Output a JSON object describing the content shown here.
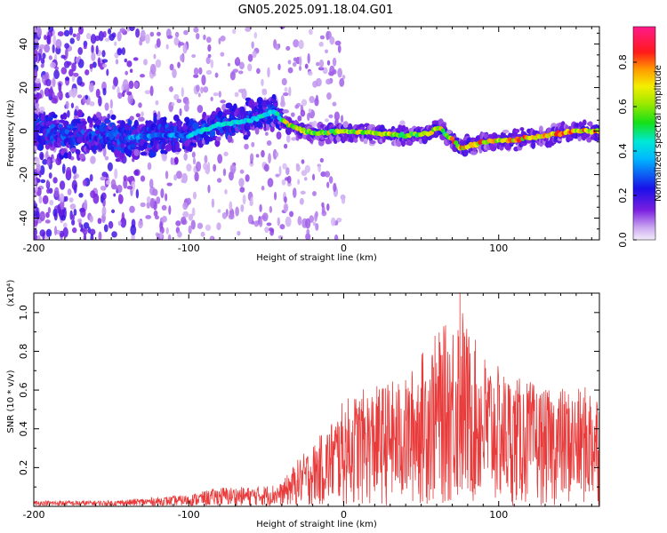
{
  "title": "GN05.2025.091.18.04.G01",
  "chart_data": [
    {
      "type": "heatmap",
      "xlabel": "Height of straight line (km)",
      "ylabel": "Frequency (Hz)",
      "xlim": [
        -200,
        165
      ],
      "ylim": [
        -50,
        48
      ],
      "xticks": [
        -200,
        -100,
        0,
        100
      ],
      "yticks": [
        -40,
        -20,
        0,
        20,
        40
      ],
      "colorbar": {
        "label": "Normalized spectral amplitude",
        "ticks": [
          0.0,
          0.2,
          0.4,
          0.6,
          0.8
        ],
        "range": [
          0,
          0.96
        ],
        "colormap": "rainbow (white-purple-blue-cyan-green-yellow-red-magenta)"
      },
      "ridge": {
        "description": "dominant frequency trace",
        "x": [
          -200,
          -180,
          -160,
          -140,
          -120,
          -100,
          -80,
          -60,
          -45,
          -40,
          -30,
          -20,
          0,
          20,
          40,
          55,
          62,
          66,
          70,
          75,
          90,
          110,
          130,
          150,
          165
        ],
        "y": [
          0,
          -2,
          -1,
          -3,
          -2,
          -2,
          3,
          5,
          9,
          5,
          1,
          -1,
          0,
          -1,
          -2,
          -1,
          2,
          -2,
          -4,
          -8,
          -5,
          -4,
          -2,
          0,
          0
        ]
      },
      "grid": false
    },
    {
      "type": "line",
      "xlabel": "Height of straight line (km)",
      "ylabel": "SNR (10 * v/v)",
      "yscale_label": "(x10⁴)",
      "xlim": [
        -200,
        165
      ],
      "ylim": [
        0,
        1.1
      ],
      "xticks": [
        -200,
        -100,
        0,
        100
      ],
      "yticks": [
        0.2,
        0.4,
        0.6,
        0.8,
        1.0
      ],
      "series": [
        {
          "color": "#e83b3b",
          "envelope_x": [
            -200,
            -150,
            -100,
            -80,
            -60,
            -40,
            -30,
            -20,
            -10,
            0,
            10,
            20,
            30,
            40,
            50,
            60,
            70,
            75,
            80,
            90,
            100,
            110,
            120,
            130,
            140,
            150,
            160,
            165
          ],
          "envelope_y": [
            0.03,
            0.03,
            0.06,
            0.1,
            0.1,
            0.12,
            0.24,
            0.32,
            0.42,
            0.55,
            0.6,
            0.62,
            0.65,
            0.66,
            0.8,
            0.9,
            0.97,
            1.1,
            0.92,
            0.8,
            0.72,
            0.67,
            0.65,
            0.6,
            0.62,
            0.6,
            0.64,
            0.6
          ],
          "peak": {
            "x": 75,
            "y": 1.1
          }
        }
      ],
      "grid": false
    }
  ]
}
